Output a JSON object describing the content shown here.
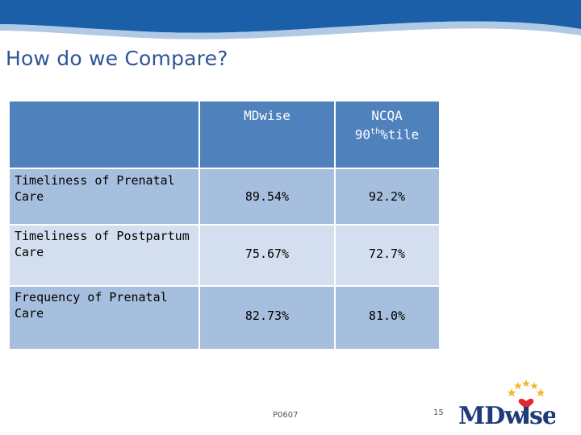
{
  "slide": {
    "title": "How do we Compare?",
    "footer_code": "P0607",
    "page_number": "15"
  },
  "table": {
    "headers": [
      "",
      "MDwise",
      "NCQA 90th%tile"
    ],
    "header_ncqa_line1": "NCQA",
    "header_ncqa_line2_base": "90",
    "header_ncqa_line2_sup": "th",
    "header_ncqa_line2_rest": "%tile",
    "rows": [
      {
        "label_line1": "Timeliness of Prenatal",
        "label_line2": "Care",
        "mdwise": "89.54%",
        "ncqa": "92.2%"
      },
      {
        "label_line1": "Timeliness of Postpartum",
        "label_line2": "Care",
        "mdwise": "75.67%",
        "ncqa": "72.7%"
      },
      {
        "label_line1": "Frequency of Prenatal",
        "label_line2": "Care",
        "mdwise": "82.73%",
        "ncqa": "81.0%"
      }
    ]
  },
  "logo": {
    "text": "MDwise",
    "text_part1": "MDw",
    "text_part2": "se"
  },
  "colors": {
    "header_blue": "#4f81bd",
    "row_dark": "#a7bfde",
    "row_light": "#d3dfee",
    "banner_blue": "#1a5fa8",
    "title_blue": "#2f5597",
    "logo_navy": "#1f3b7a",
    "logo_gold": "#f2b632",
    "logo_red": "#e0282e"
  }
}
